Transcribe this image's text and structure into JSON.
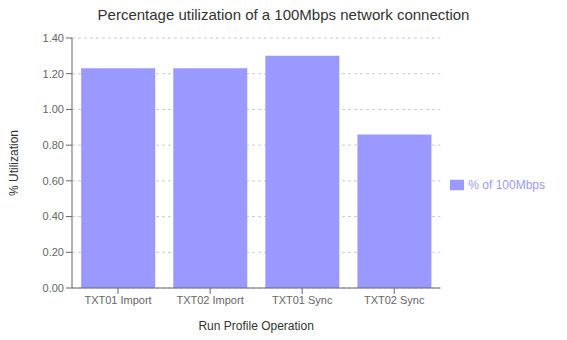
{
  "chart_data": {
    "type": "bar",
    "title": "Percentage utilization of a 100Mbps network connection",
    "xlabel": "Run Profile Operation",
    "ylabel": "% Utilization",
    "categories": [
      "TXT01 Import",
      "TXT02 Import",
      "TXT01 Sync",
      "TXT02 Sync"
    ],
    "series": [
      {
        "name": "% of 100Mbps",
        "color": "#9999FF",
        "values": [
          1.23,
          1.23,
          1.3,
          0.86
        ]
      }
    ],
    "ylim": [
      0.0,
      1.4
    ],
    "yticks": [
      {
        "value": 0.0,
        "label": "0.00"
      },
      {
        "value": 0.2,
        "label": "0.20"
      },
      {
        "value": 0.4,
        "label": "0.40"
      },
      {
        "value": 0.6,
        "label": "0.60"
      },
      {
        "value": 0.8,
        "label": "0.80"
      },
      {
        "value": 1.0,
        "label": "1.00"
      },
      {
        "value": 1.2,
        "label": "1.20"
      },
      {
        "value": 1.4,
        "label": "1.40"
      }
    ],
    "grid": true,
    "legend": "right"
  }
}
